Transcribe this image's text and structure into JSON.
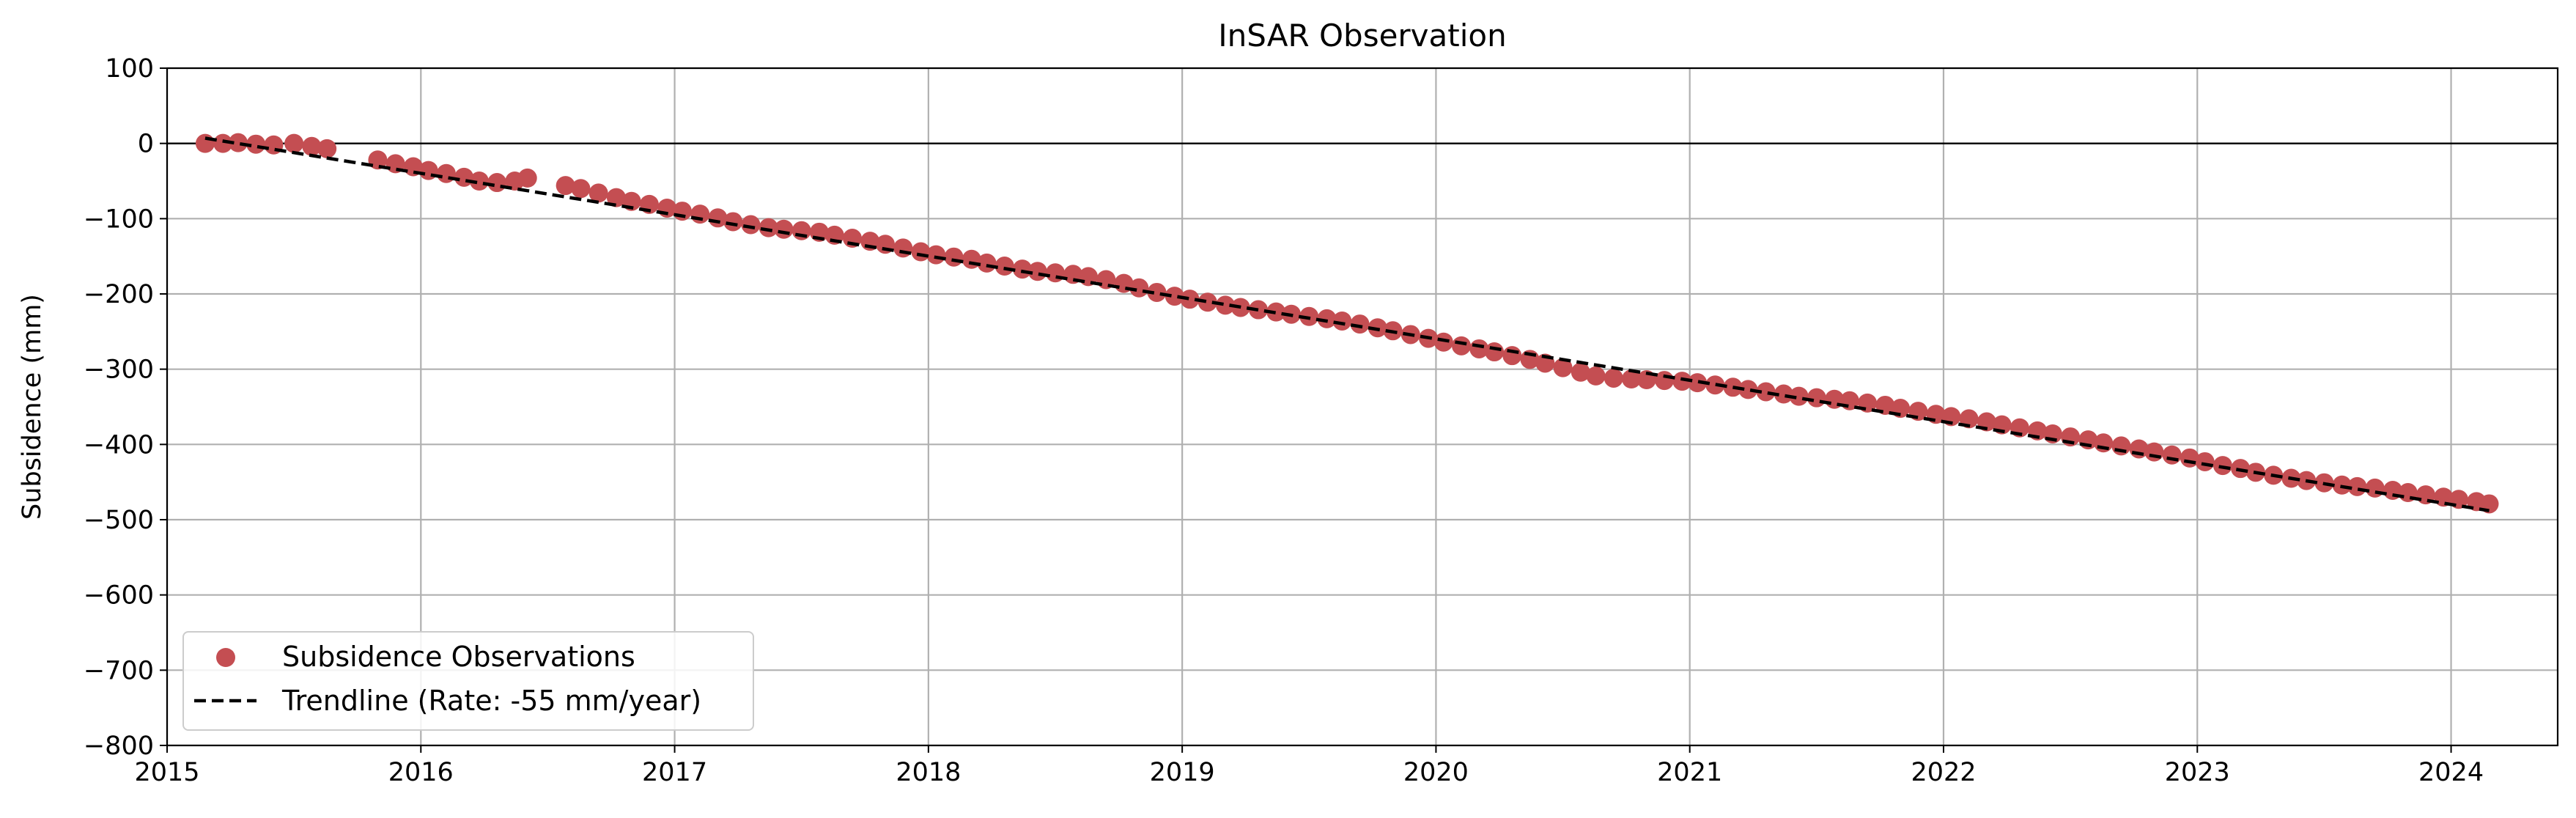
{
  "chart_data": {
    "type": "scatter",
    "title": "InSAR Observation",
    "xlabel": "",
    "ylabel": "Subsidence (mm)",
    "xlim": [
      2015.0,
      2024.42
    ],
    "ylim": [
      -800,
      100
    ],
    "xticks": [
      2015,
      2016,
      2017,
      2018,
      2019,
      2020,
      2021,
      2022,
      2023,
      2024
    ],
    "xtick_labels": [
      "2015",
      "2016",
      "2017",
      "2018",
      "2019",
      "2020",
      "2021",
      "2022",
      "2023",
      "2024"
    ],
    "yticks": [
      100,
      0,
      -100,
      -200,
      -300,
      -400,
      -500,
      -600,
      -700,
      -800
    ],
    "ytick_labels": [
      "100",
      "0",
      "−100",
      "−200",
      "−300",
      "−400",
      "−500",
      "−600",
      "−700",
      "−800"
    ],
    "grid": true,
    "zero_line": 0,
    "legend_position": "lower-left",
    "series": [
      {
        "name": "Subsidence Observations",
        "kind": "scatter",
        "color": "#c44e52",
        "points": [
          [
            2015.15,
            0
          ],
          [
            2015.22,
            0
          ],
          [
            2015.28,
            1
          ],
          [
            2015.35,
            -1
          ],
          [
            2015.42,
            -2
          ],
          [
            2015.5,
            0
          ],
          [
            2015.57,
            -4
          ],
          [
            2015.63,
            -7
          ],
          [
            2015.83,
            -22
          ],
          [
            2015.9,
            -27
          ],
          [
            2015.97,
            -31
          ],
          [
            2016.03,
            -36
          ],
          [
            2016.1,
            -40
          ],
          [
            2016.17,
            -45
          ],
          [
            2016.23,
            -50
          ],
          [
            2016.3,
            -52
          ],
          [
            2016.37,
            -50
          ],
          [
            2016.42,
            -46
          ],
          [
            2016.57,
            -56
          ],
          [
            2016.63,
            -60
          ],
          [
            2016.7,
            -66
          ],
          [
            2016.77,
            -72
          ],
          [
            2016.83,
            -77
          ],
          [
            2016.9,
            -81
          ],
          [
            2016.97,
            -86
          ],
          [
            2017.03,
            -90
          ],
          [
            2017.1,
            -94
          ],
          [
            2017.17,
            -99
          ],
          [
            2017.23,
            -104
          ],
          [
            2017.3,
            -108
          ],
          [
            2017.37,
            -112
          ],
          [
            2017.43,
            -114
          ],
          [
            2017.5,
            -116
          ],
          [
            2017.57,
            -118
          ],
          [
            2017.63,
            -122
          ],
          [
            2017.7,
            -126
          ],
          [
            2017.77,
            -130
          ],
          [
            2017.83,
            -134
          ],
          [
            2017.9,
            -139
          ],
          [
            2017.97,
            -144
          ],
          [
            2018.03,
            -148
          ],
          [
            2018.1,
            -151
          ],
          [
            2018.17,
            -154
          ],
          [
            2018.23,
            -159
          ],
          [
            2018.3,
            -163
          ],
          [
            2018.37,
            -167
          ],
          [
            2018.43,
            -170
          ],
          [
            2018.5,
            -172
          ],
          [
            2018.57,
            -174
          ],
          [
            2018.63,
            -177
          ],
          [
            2018.7,
            -181
          ],
          [
            2018.77,
            -186
          ],
          [
            2018.83,
            -192
          ],
          [
            2018.9,
            -198
          ],
          [
            2018.97,
            -203
          ],
          [
            2019.03,
            -207
          ],
          [
            2019.1,
            -211
          ],
          [
            2019.17,
            -215
          ],
          [
            2019.23,
            -218
          ],
          [
            2019.3,
            -221
          ],
          [
            2019.37,
            -224
          ],
          [
            2019.43,
            -227
          ],
          [
            2019.5,
            -230
          ],
          [
            2019.57,
            -233
          ],
          [
            2019.63,
            -236
          ],
          [
            2019.7,
            -240
          ],
          [
            2019.77,
            -245
          ],
          [
            2019.83,
            -249
          ],
          [
            2019.9,
            -254
          ],
          [
            2019.97,
            -259
          ],
          [
            2020.03,
            -264
          ],
          [
            2020.1,
            -269
          ],
          [
            2020.17,
            -273
          ],
          [
            2020.23,
            -277
          ],
          [
            2020.3,
            -282
          ],
          [
            2020.37,
            -287
          ],
          [
            2020.43,
            -292
          ],
          [
            2020.5,
            -298
          ],
          [
            2020.57,
            -304
          ],
          [
            2020.63,
            -309
          ],
          [
            2020.7,
            -312
          ],
          [
            2020.77,
            -313
          ],
          [
            2020.83,
            -314
          ],
          [
            2020.9,
            -315
          ],
          [
            2020.97,
            -316
          ],
          [
            2021.03,
            -318
          ],
          [
            2021.1,
            -321
          ],
          [
            2021.17,
            -324
          ],
          [
            2021.23,
            -327
          ],
          [
            2021.3,
            -330
          ],
          [
            2021.37,
            -333
          ],
          [
            2021.43,
            -336
          ],
          [
            2021.5,
            -338
          ],
          [
            2021.57,
            -340
          ],
          [
            2021.63,
            -342
          ],
          [
            2021.7,
            -345
          ],
          [
            2021.77,
            -348
          ],
          [
            2021.83,
            -352
          ],
          [
            2021.9,
            -356
          ],
          [
            2021.97,
            -360
          ],
          [
            2022.03,
            -363
          ],
          [
            2022.1,
            -366
          ],
          [
            2022.17,
            -370
          ],
          [
            2022.23,
            -374
          ],
          [
            2022.3,
            -378
          ],
          [
            2022.37,
            -382
          ],
          [
            2022.43,
            -386
          ],
          [
            2022.5,
            -390
          ],
          [
            2022.57,
            -394
          ],
          [
            2022.63,
            -398
          ],
          [
            2022.7,
            -402
          ],
          [
            2022.77,
            -406
          ],
          [
            2022.83,
            -410
          ],
          [
            2022.9,
            -414
          ],
          [
            2022.97,
            -418
          ],
          [
            2023.03,
            -423
          ],
          [
            2023.1,
            -428
          ],
          [
            2023.17,
            -432
          ],
          [
            2023.23,
            -437
          ],
          [
            2023.3,
            -441
          ],
          [
            2023.37,
            -445
          ],
          [
            2023.43,
            -448
          ],
          [
            2023.5,
            -451
          ],
          [
            2023.57,
            -454
          ],
          [
            2023.63,
            -456
          ],
          [
            2023.7,
            -458
          ],
          [
            2023.77,
            -461
          ],
          [
            2023.83,
            -464
          ],
          [
            2023.9,
            -467
          ],
          [
            2023.97,
            -470
          ],
          [
            2024.03,
            -473
          ],
          [
            2024.1,
            -476
          ],
          [
            2024.15,
            -479
          ]
        ]
      },
      {
        "name": "Trendline (Rate: -55 mm/year)",
        "kind": "line",
        "style": "dashed",
        "color": "#000000",
        "x": [
          2015.15,
          2024.15
        ],
        "y": [
          7,
          -488
        ]
      }
    ]
  }
}
